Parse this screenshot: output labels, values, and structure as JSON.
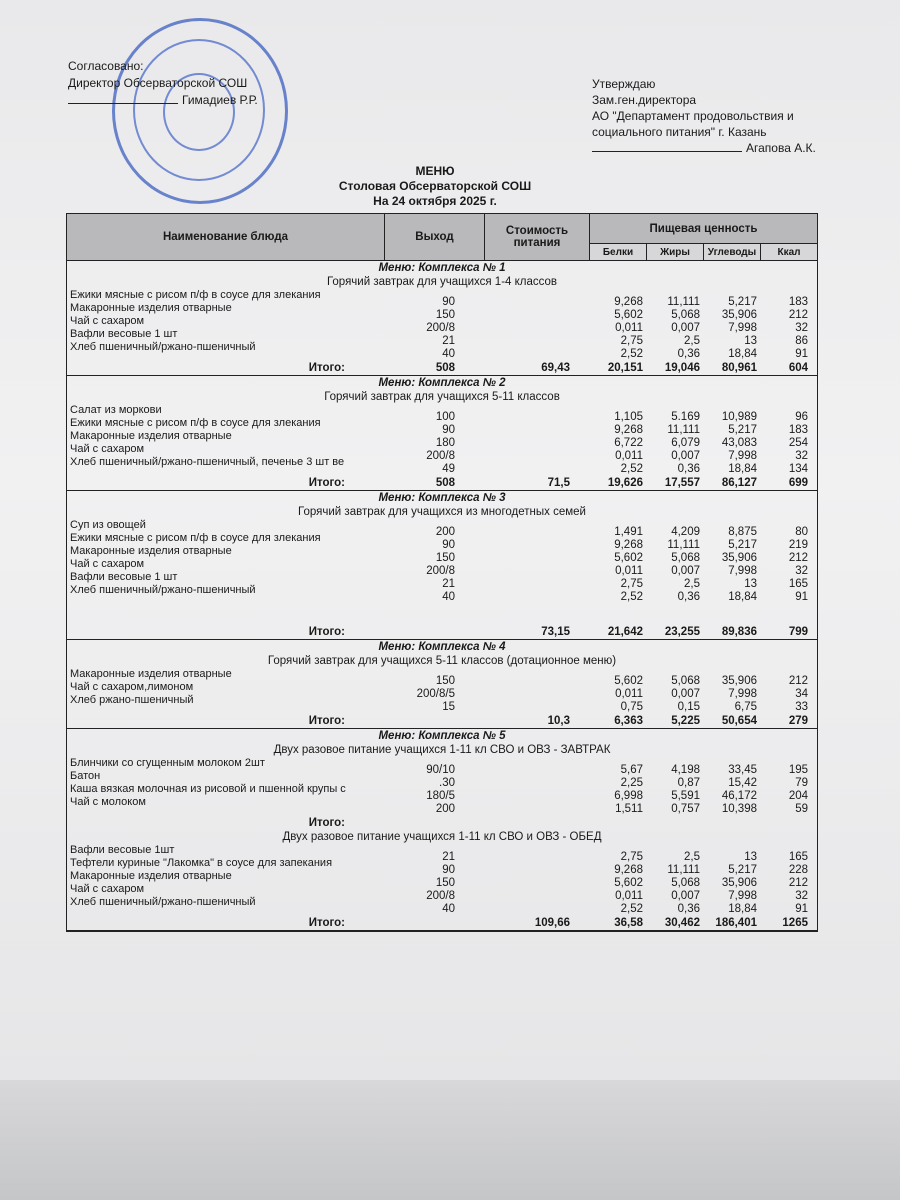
{
  "header_left": {
    "agreed": "Согласовано:",
    "position": "Директор Обсерваторской СОШ",
    "name": "Гимадиев Р.Р."
  },
  "header_right": {
    "approve": "Утверждаю",
    "position": "Зам.ген.директора",
    "org1": "АО \"Департамент продовольствия и",
    "org2": "социального питания\" г. Казань",
    "name": "Агапова А.К."
  },
  "stamp_color": "#3c5fc0",
  "title": {
    "line1": "МЕНЮ",
    "line2": "Столовая Обсерваторской СОШ",
    "line3": "На 24 октября 2025 г."
  },
  "columns": {
    "name": "Наименование блюда",
    "out": "Выход",
    "cost": "Стоимость питания",
    "nutrition": "Пищевая ценность",
    "b": "Белки",
    "j": "Жиры",
    "u": "Углеводы",
    "k": "Ккал"
  },
  "total_label": "Итого:",
  "sections": [
    {
      "title": "Меню: Комплекса № 1",
      "subtitle": "Горячий завтрак для учащихся 1-4 классов",
      "names": [
        "Ежики мясные с рисом п/ф в соусе для злекания",
        "Макаронные изделия отварные",
        "Чай с сахаром",
        "Вафли весовые 1 шт",
        "Хлеб пшеничный/ржано-пшеничный"
      ],
      "lines": [
        {
          "out": "90",
          "b": "9,268",
          "j": "11,111",
          "u": "5,217",
          "k": "183"
        },
        {
          "out": "150",
          "b": "5,602",
          "j": "5,068",
          "u": "35,906",
          "k": "212"
        },
        {
          "out": "200/8",
          "b": "0,011",
          "j": "0,007",
          "u": "7,998",
          "k": "32"
        },
        {
          "out": "21",
          "b": "2,75",
          "j": "2,5",
          "u": "13",
          "k": "86"
        },
        {
          "out": "40",
          "b": "2,52",
          "j": "0,36",
          "u": "18,84",
          "k": "91"
        }
      ],
      "total": {
        "out": "508",
        "cost": "69,43",
        "b": "20,151",
        "j": "19,046",
        "u": "80,961",
        "k": "604"
      }
    },
    {
      "title": "Меню: Комплекса № 2",
      "subtitle": "Горячий завтрак для учащихся 5-11 классов",
      "names": [
        "Салат из моркови",
        "Ежики мясные с рисом п/ф в соусе для злекания",
        "Макаронные изделия отварные",
        "Чай с сахаром",
        "Хлеб пшеничный/ржано-пшеничный, печенье 3 шт ве"
      ],
      "lines": [
        {
          "out": "100",
          "b": "1,105",
          "j": "5.169",
          "u": "10,989",
          "k": "96"
        },
        {
          "out": "90",
          "b": "9,268",
          "j": "11,111",
          "u": "5,217",
          "k": "183"
        },
        {
          "out": "180",
          "b": "6,722",
          "j": "6,079",
          "u": "43,083",
          "k": "254"
        },
        {
          "out": "200/8",
          "b": "0,011",
          "j": "0,007",
          "u": "7,998",
          "k": "32"
        },
        {
          "out": "49",
          "b": "2,52",
          "j": "0,36",
          "u": "18,84",
          "k": "134"
        }
      ],
      "total": {
        "out": "508",
        "cost": "71,5",
        "b": "19,626",
        "j": "17,557",
        "u": "86,127",
        "k": "699"
      }
    },
    {
      "title": "Меню: Комплекса № 3",
      "subtitle": "Горячий завтрак для учащихся из многодетных семей",
      "names": [
        "Суп из овощей",
        "Ежики мясные с рисом п/ф в соусе для злекания",
        "Макаронные изделия отварные",
        "Чай с сахаром",
        "Вафли весовые 1 шт",
        "Хлеб пшеничный/ржано-пшеничный"
      ],
      "lines": [
        {
          "out": "200",
          "b": "1,491",
          "j": "4,209",
          "u": "8,875",
          "k": "80"
        },
        {
          "out": "90",
          "b": "9,268",
          "j": "11,111",
          "u": "5,217",
          "k": "219"
        },
        {
          "out": "150",
          "b": "5,602",
          "j": "5,068",
          "u": "35,906",
          "k": "212"
        },
        {
          "out": "200/8",
          "b": "0,011",
          "j": "0,007",
          "u": "7,998",
          "k": "32"
        },
        {
          "out": "21",
          "b": "2,75",
          "j": "2,5",
          "u": "13",
          "k": "165"
        },
        {
          "out": "40",
          "b": "2,52",
          "j": "0,36",
          "u": "18,84",
          "k": "91"
        }
      ],
      "gap": true,
      "total": {
        "out": "",
        "cost": "73,15",
        "b": "21,642",
        "j": "23,255",
        "u": "89,836",
        "k": "799"
      }
    },
    {
      "title": "Меню: Комплекса № 4",
      "subtitle": "Горячий завтрак для учащихся 5-11 классов (дотационное меню)",
      "names": [
        "Макаронные изделия отварные",
        "Чай с сахаром,лимоном",
        "Хлеб ржано-пшеничный"
      ],
      "lines": [
        {
          "out": "150",
          "b": "5,602",
          "j": "5,068",
          "u": "35,906",
          "k": "212"
        },
        {
          "out": "200/8/5",
          "b": "0,011",
          "j": "0,007",
          "u": "7,998",
          "k": "34"
        },
        {
          "out": "15",
          "b": "0,75",
          "j": "0,15",
          "u": "6,75",
          "k": "33"
        }
      ],
      "total": {
        "out": "",
        "cost": "10,3",
        "b": "6,363",
        "j": "5,225",
        "u": "50,654",
        "k": "279"
      }
    },
    {
      "title": "Меню: Комплекса № 5",
      "subtitle": "Двух разовое питание учащихся 1-11 кл СВО и ОВЗ - ЗАВТРАК",
      "names": [
        "Блинчики со сгущенным молоком 2шт",
        "Батон",
        "Каша вязкая молочная из рисовой и пшенной крупы с",
        "Чай с молоком"
      ],
      "lines": [
        {
          "out": "90/10",
          "b": "5,67",
          "j": "4,198",
          "u": "33,45",
          "k": "195"
        },
        {
          "out": ".30",
          "b": "2,25",
          "j": "0,87",
          "u": "15,42",
          "k": "79"
        },
        {
          "out": "180/5",
          "b": "6,998",
          "j": "5,591",
          "u": "46,172",
          "k": "204"
        },
        {
          "out": "200",
          "b": "1,511",
          "j": "0,757",
          "u": "10,398",
          "k": "59"
        }
      ],
      "total": {
        "out": "",
        "cost": "",
        "b": "",
        "j": "",
        "u": "",
        "k": ""
      },
      "noborder": true
    },
    {
      "title": "",
      "subtitle": "Двух разовое питание учащихся 1-11 кл СВО и ОВЗ - ОБЕД",
      "names": [
        "Вафли весовые 1шт",
        "Тефтели куриные \"Лакомка\" в соусе для запекания",
        "Макаронные изделия отварные",
        "Чай с сахаром",
        "Хлеб пшеничный/ржано-пшеничный"
      ],
      "lines": [
        {
          "out": "21",
          "b": "2,75",
          "j": "2,5",
          "u": "13",
          "k": "165"
        },
        {
          "out": "90",
          "b": "9,268",
          "j": "11,111",
          "u": "5,217",
          "k": "228"
        },
        {
          "out": "150",
          "b": "5,602",
          "j": "5,068",
          "u": "35,906",
          "k": "212"
        },
        {
          "out": "200/8",
          "b": "0,011",
          "j": "0,007",
          "u": "7,998",
          "k": "32"
        },
        {
          "out": "40",
          "b": "2,52",
          "j": "0,36",
          "u": "18,84",
          "k": "91"
        }
      ],
      "total": {
        "out": "",
        "cost": "109,66",
        "b": "36,58",
        "j": "30,462",
        "u": "186,401",
        "k": "1265"
      }
    }
  ]
}
